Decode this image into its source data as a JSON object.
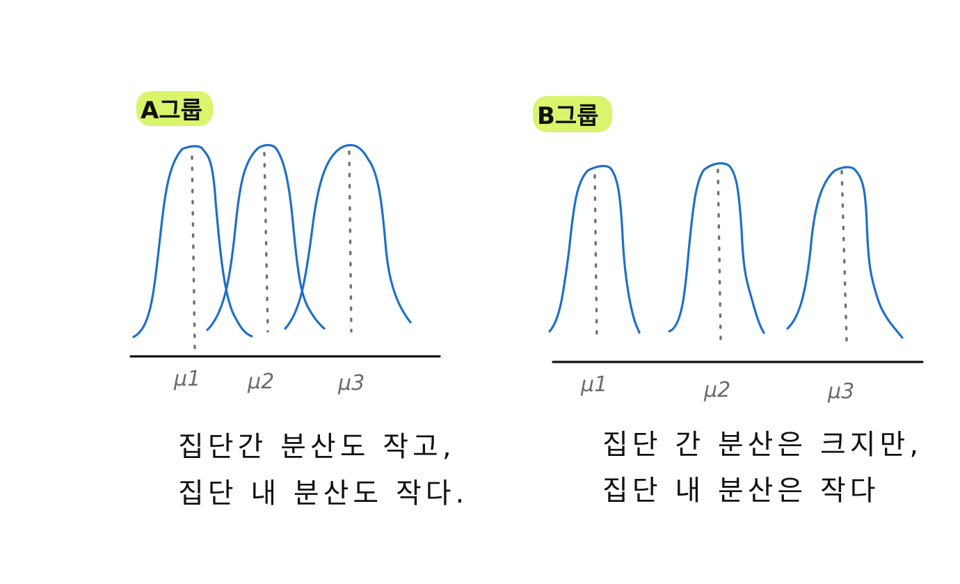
{
  "colors": {
    "curve": "#1f6fc8",
    "mean_line": "#707070",
    "axis": "#111111",
    "highlight": "#d9f56b",
    "mu_text": "#6b6b6b",
    "text": "#111111"
  },
  "panels": [
    {
      "id": "a",
      "label": "A그룹",
      "means": [
        "μ1",
        "μ2",
        "μ3"
      ],
      "spread": "narrow-overlapping",
      "caption": [
        "집단간 분산도 작고,",
        "집단 내 분산도 작다."
      ]
    },
    {
      "id": "b",
      "label": "B그룹",
      "means": [
        "μ1",
        "μ2",
        "μ3"
      ],
      "spread": "separated",
      "caption": [
        "집단 간 분산은 크지만,",
        "집단 내 분산은 작다"
      ]
    }
  ]
}
